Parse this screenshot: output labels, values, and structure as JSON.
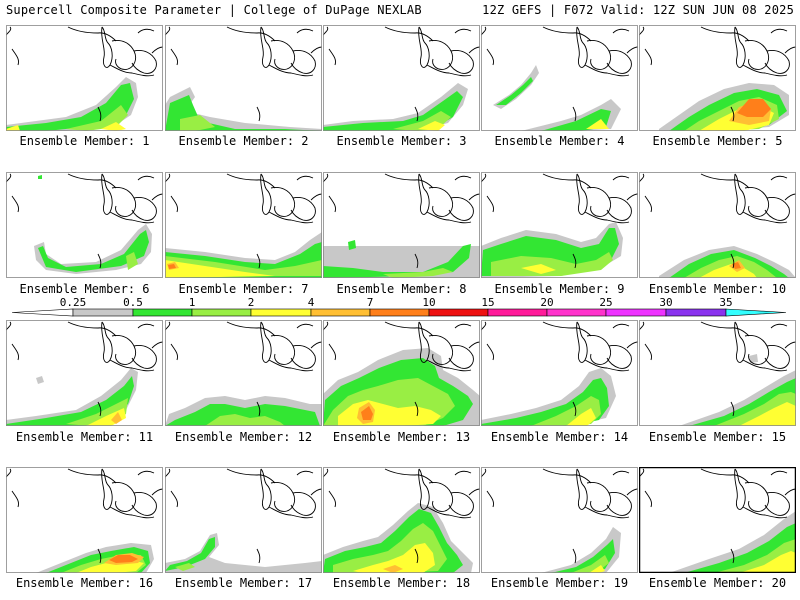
{
  "header": {
    "title": "Supercell Composite Parameter | College of DuPage NEXLAB",
    "run_info": "12Z GEFS | F072 Valid: 12Z SUN JUN 08 2025"
  },
  "panel_label_prefix": "Ensemble Member: ",
  "members": [
    {
      "label": "Ensemble Member: 1"
    },
    {
      "label": "Ensemble Member: 2"
    },
    {
      "label": "Ensemble Member: 3"
    },
    {
      "label": "Ensemble Member: 4"
    },
    {
      "label": "Ensemble Member: 5"
    },
    {
      "label": "Ensemble Member: 6"
    },
    {
      "label": "Ensemble Member: 7"
    },
    {
      "label": "Ensemble Member: 8"
    },
    {
      "label": "Ensemble Member: 9"
    },
    {
      "label": "Ensemble Member: 10"
    },
    {
      "label": "Ensemble Member: 11"
    },
    {
      "label": "Ensemble Member: 12"
    },
    {
      "label": "Ensemble Member: 13"
    },
    {
      "label": "Ensemble Member: 14"
    },
    {
      "label": "Ensemble Member: 15"
    },
    {
      "label": "Ensemble Member: 16"
    },
    {
      "label": "Ensemble Member: 17"
    },
    {
      "label": "Ensemble Member: 18"
    },
    {
      "label": "Ensemble Member: 19"
    },
    {
      "label": "Ensemble Member: 20"
    }
  ],
  "legend": {
    "labels": [
      "0.25",
      "0.5",
      "1",
      "2",
      "4",
      "7",
      "10",
      "15",
      "20",
      "25",
      "30",
      "35"
    ],
    "colors": [
      "#c8c8c8",
      "#33e633",
      "#99ee44",
      "#ffff33",
      "#ffbf33",
      "#ff7f1a",
      "#ee1111",
      "#ff1a9a",
      "#ff33cc",
      "#ee33ff",
      "#8a33ee",
      "#b066dd",
      "#33ffff"
    ]
  },
  "selected_member_index": 19
}
